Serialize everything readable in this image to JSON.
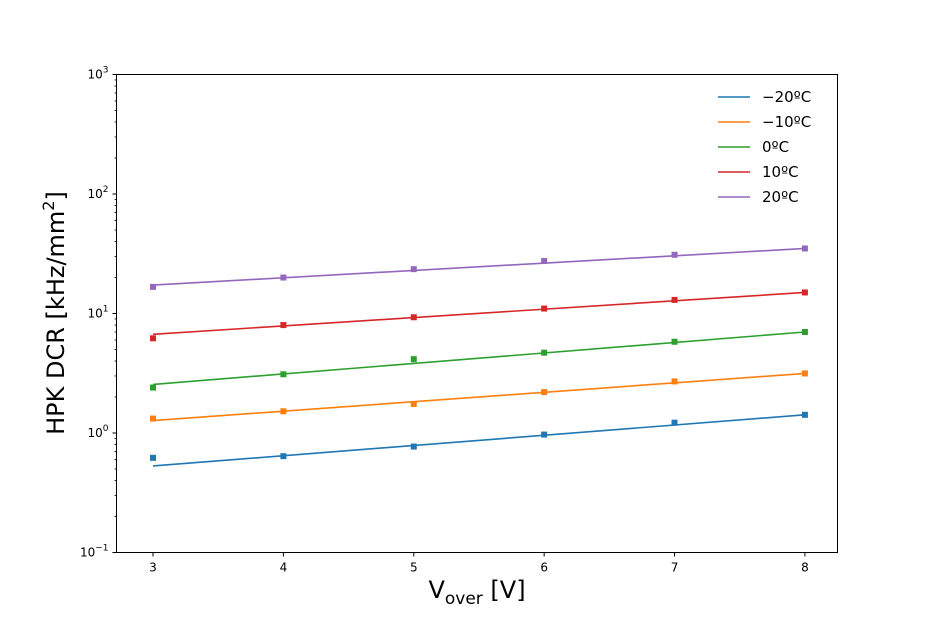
{
  "chart_data": {
    "type": "scatter",
    "title": "",
    "xlabel": {
      "main": "V",
      "sub": "over",
      "rest": " [V]"
    },
    "ylabel": {
      "main": "HPK DCR [kHz/mm",
      "sup": "2",
      "rest": "]"
    },
    "xlim": [
      2.72,
      8.25
    ],
    "ylim_log10": [
      -1,
      3
    ],
    "y_scale": "log",
    "x_ticks": [
      3,
      4,
      5,
      6,
      7,
      8
    ],
    "x_tick_labels": [
      "3",
      "4",
      "5",
      "6",
      "7",
      "8"
    ],
    "y_ticks_log10": [
      -1,
      0,
      1,
      2,
      3
    ],
    "y_tick_labels": [
      {
        "base": "10",
        "exp": "−1"
      },
      {
        "base": "10",
        "exp": "0"
      },
      {
        "base": "10",
        "exp": "1"
      },
      {
        "base": "10",
        "exp": "2"
      },
      {
        "base": "10",
        "exp": "3"
      }
    ],
    "legend_position": "top-right",
    "x": [
      3,
      4,
      5,
      6,
      7,
      8
    ],
    "series": [
      {
        "name": "−20ºC",
        "color": "#1f77b4",
        "values": [
          0.62,
          0.64,
          0.77,
          0.97,
          1.22,
          1.42
        ],
        "fit": [
          0.53,
          1.42
        ]
      },
      {
        "name": "−10ºC",
        "color": "#ff7f0e",
        "values": [
          1.32,
          1.52,
          1.75,
          2.2,
          2.7,
          3.15
        ],
        "fit": [
          1.27,
          3.15
        ]
      },
      {
        "name": "0ºC",
        "color": "#2ca02c",
        "values": [
          2.4,
          3.1,
          4.15,
          4.7,
          5.8,
          7.0
        ],
        "fit": [
          2.55,
          7.0
        ]
      },
      {
        "name": "10ºC",
        "color": "#d62728",
        "values": [
          6.2,
          8.0,
          9.3,
          11.0,
          13.0,
          15.0
        ],
        "fit": [
          6.7,
          15.0
        ]
      },
      {
        "name": "20ºC",
        "color": "#9467bd",
        "values": [
          16.7,
          20.0,
          23.5,
          27.5,
          31.0,
          35.0
        ],
        "fit": [
          17.3,
          35.0
        ]
      }
    ]
  }
}
